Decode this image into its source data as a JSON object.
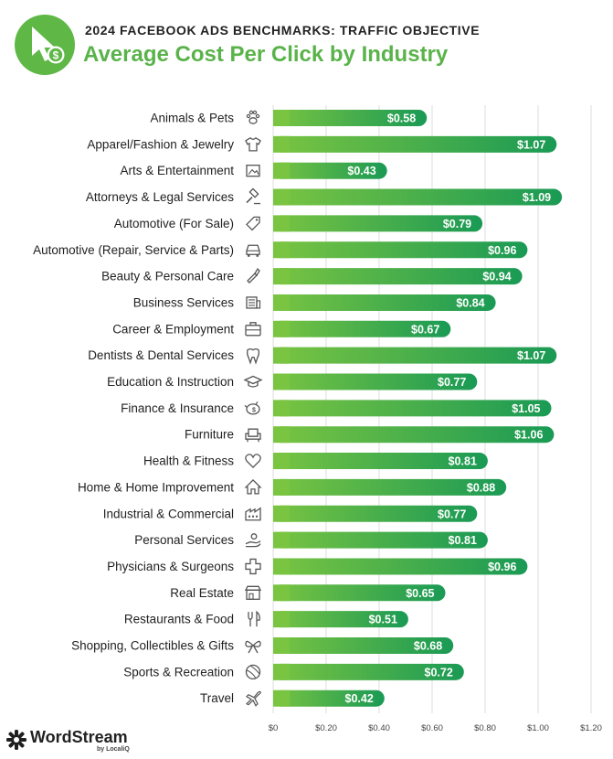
{
  "header": {
    "supertitle": "2024 FACEBOOK ADS BENCHMARKS: TRAFFIC OBJECTIVE",
    "title": "Average Cost Per Click by Industry",
    "logo_icon": "cursor-dollar-icon"
  },
  "colors": {
    "bar_start": "#79c441",
    "bar_end": "#1a9a55",
    "title_green": "#5ab34a",
    "logo_green": "#5fb846",
    "axis_grid": "#dddddd"
  },
  "chart_data": {
    "type": "bar",
    "orientation": "horizontal",
    "categories": [
      "Animals & Pets",
      "Apparel/Fashion & Jewelry",
      "Arts & Entertainment",
      "Attorneys & Legal Services",
      "Automotive (For Sale)",
      "Automotive (Repair, Service & Parts)",
      "Beauty & Personal Care",
      "Business Services",
      "Career & Employment",
      "Dentists & Dental Services",
      "Education & Instruction",
      "Finance & Insurance",
      "Furniture",
      "Health & Fitness",
      "Home & Home Improvement",
      "Industrial & Commercial",
      "Personal Services",
      "Physicians & Surgeons",
      "Real Estate",
      "Restaurants & Food",
      "Shopping, Collectibles & Gifts",
      "Sports & Recreation",
      "Travel"
    ],
    "values": [
      0.58,
      1.07,
      0.43,
      1.09,
      0.79,
      0.96,
      0.94,
      0.84,
      0.67,
      1.07,
      0.77,
      1.05,
      1.06,
      0.81,
      0.88,
      0.77,
      0.81,
      0.96,
      0.65,
      0.51,
      0.68,
      0.72,
      0.42
    ],
    "value_labels": [
      "$0.58",
      "$1.07",
      "$0.43",
      "$1.09",
      "$0.79",
      "$0.96",
      "$0.94",
      "$0.84",
      "$0.67",
      "$1.07",
      "$0.77",
      "$1.05",
      "$1.06",
      "$0.81",
      "$0.88",
      "$0.77",
      "$0.81",
      "$0.96",
      "$0.65",
      "$0.51",
      "$0.68",
      "$0.72",
      "$0.42"
    ],
    "icons": [
      "paw-icon",
      "shirt-icon",
      "picture-frame-icon",
      "gavel-icon",
      "price-tag-icon",
      "car-front-icon",
      "makeup-brush-icon",
      "document-list-icon",
      "briefcase-icon",
      "tooth-icon",
      "graduation-cap-icon",
      "piggy-bank-icon",
      "armchair-icon",
      "heart-icon",
      "house-icon",
      "factory-icon",
      "hand-helping-icon",
      "medical-cross-icon",
      "storefront-icon",
      "fork-knife-icon",
      "gift-bow-icon",
      "ball-icon",
      "airplane-icon"
    ],
    "xlim": [
      0,
      1.2
    ],
    "x_ticks": [
      0,
      0.2,
      0.4,
      0.6,
      0.8,
      1.0,
      1.2
    ],
    "x_tick_labels": [
      "$0",
      "$0.20",
      "$0.40",
      "$0.60",
      "$0.80",
      "$1.00",
      "$1.20"
    ],
    "grid": true,
    "legend": "none"
  },
  "brand": {
    "name": "WordStream",
    "sub": "by LocaliQ",
    "icon": "wordstream-star-icon"
  }
}
